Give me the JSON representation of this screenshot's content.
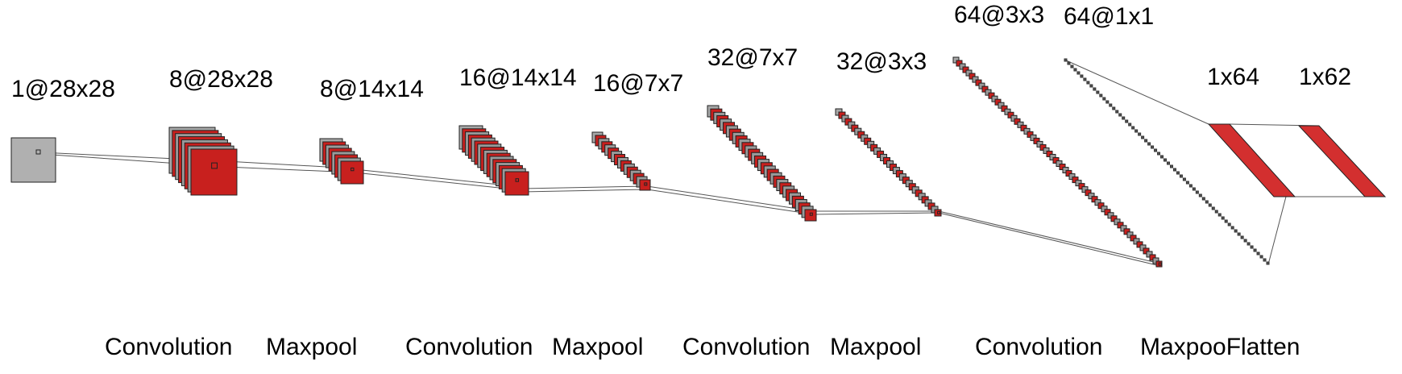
{
  "layers": [
    {
      "id": "input",
      "label": "1@28x28",
      "maps": 1,
      "color": "#b0b0b0"
    },
    {
      "id": "conv1",
      "label": "8@28x28",
      "maps": 8,
      "color": "#c8201e"
    },
    {
      "id": "pool1",
      "label": "8@14x14",
      "maps": 8,
      "color": "#c8201e"
    },
    {
      "id": "conv2",
      "label": "16@14x14",
      "maps": 16,
      "color": "#c8201e"
    },
    {
      "id": "pool2",
      "label": "16@7x7",
      "maps": 16,
      "color": "#c8201e"
    },
    {
      "id": "conv3",
      "label": "32@7x7",
      "maps": 32,
      "color": "#c8201e"
    },
    {
      "id": "pool3",
      "label": "32@3x3",
      "maps": 32,
      "color": "#c8201e"
    },
    {
      "id": "conv4",
      "label": "64@3x3",
      "maps": 64,
      "color": "#c8201e"
    },
    {
      "id": "pool4",
      "label": "64@1x1",
      "maps": 64,
      "color": "#c8201e"
    },
    {
      "id": "flat1",
      "label": "1x64",
      "color": "#d32f2f"
    },
    {
      "id": "flat2",
      "label": "1x62",
      "color": "#d32f2f"
    }
  ],
  "operations": [
    "Convolution",
    "Maxpool",
    "Convolution",
    "Maxpool",
    "Convolution",
    "Maxpool",
    "Convolution",
    "MaxpooFlatten"
  ],
  "colors": {
    "stack_shadow": "#8a8a8a",
    "line": "#555555",
    "edge": "#222222"
  }
}
